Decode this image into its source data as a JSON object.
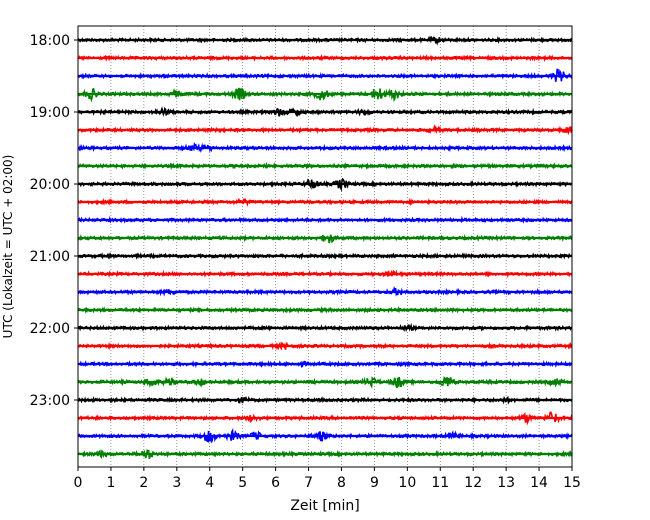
{
  "chart_data": {
    "type": "line",
    "xlabel": "Zeit  [min]",
    "ylabel": "UTC (Lokalzeit = UTC + 02:00)",
    "xlim": [
      0,
      15
    ],
    "x_ticks": [
      "0",
      "1",
      "2",
      "3",
      "4",
      "5",
      "6",
      "7",
      "8",
      "9",
      "10",
      "11",
      "12",
      "13",
      "14",
      "15"
    ],
    "y_ticks": [
      {
        "row": 0,
        "label": "18:00"
      },
      {
        "row": 4,
        "label": "19:00"
      },
      {
        "row": 8,
        "label": "20:00"
      },
      {
        "row": 12,
        "label": "21:00"
      },
      {
        "row": 16,
        "label": "22:00"
      },
      {
        "row": 20,
        "label": "23:00"
      }
    ],
    "row_minutes": 15,
    "trace_colors": [
      "#000000",
      "#ff0000",
      "#0000ff",
      "#008000"
    ],
    "grid": "vertical dotted",
    "rows": [
      {
        "start": "18:00",
        "color": "#000000",
        "events": [
          [
            10.9,
            0.5
          ]
        ]
      },
      {
        "start": "18:15",
        "color": "#ff0000",
        "events": []
      },
      {
        "start": "18:30",
        "color": "#0000ff",
        "events": [
          [
            14.6,
            1.3
          ]
        ]
      },
      {
        "start": "18:45",
        "color": "#008000",
        "events": [
          [
            0.4,
            1.0
          ],
          [
            4.9,
            1.2
          ],
          [
            7.4,
            1.2
          ],
          [
            9.1,
            1.4
          ],
          [
            9.6,
            1.0
          ],
          [
            3.0,
            0.6
          ]
        ]
      },
      {
        "start": "19:00",
        "color": "#000000",
        "events": [
          [
            2.6,
            0.6
          ],
          [
            6.1,
            0.7
          ],
          [
            6.6,
            0.6
          ],
          [
            8.7,
            0.5
          ]
        ]
      },
      {
        "start": "19:15",
        "color": "#ff0000",
        "events": [
          [
            14.9,
            0.6
          ],
          [
            10.8,
            0.4
          ]
        ]
      },
      {
        "start": "19:30",
        "color": "#0000ff",
        "events": [
          [
            3.5,
            0.6
          ],
          [
            3.9,
            0.5
          ]
        ]
      },
      {
        "start": "19:45",
        "color": "#008000",
        "events": []
      },
      {
        "start": "20:00",
        "color": "#000000",
        "events": [
          [
            7.1,
            1.0
          ],
          [
            8.0,
            1.0
          ]
        ]
      },
      {
        "start": "20:15",
        "color": "#ff0000",
        "events": [
          [
            5.0,
            0.4
          ]
        ]
      },
      {
        "start": "20:30",
        "color": "#0000ff",
        "events": []
      },
      {
        "start": "20:45",
        "color": "#008000",
        "events": [
          [
            7.6,
            1.0
          ]
        ]
      },
      {
        "start": "21:00",
        "color": "#000000",
        "events": []
      },
      {
        "start": "21:15",
        "color": "#ff0000",
        "events": [
          [
            9.5,
            0.5
          ]
        ]
      },
      {
        "start": "21:30",
        "color": "#0000ff",
        "events": [
          [
            9.7,
            0.6
          ],
          [
            2.8,
            0.4
          ]
        ]
      },
      {
        "start": "21:45",
        "color": "#008000",
        "events": []
      },
      {
        "start": "22:00",
        "color": "#000000",
        "events": [
          [
            10.0,
            0.4
          ]
        ]
      },
      {
        "start": "22:15",
        "color": "#ff0000",
        "events": [
          [
            6.3,
            0.5
          ]
        ]
      },
      {
        "start": "22:30",
        "color": "#0000ff",
        "events": [
          [
            6.8,
            0.3
          ]
        ]
      },
      {
        "start": "22:45",
        "color": "#008000",
        "events": [
          [
            2.2,
            0.8
          ],
          [
            2.8,
            0.7
          ],
          [
            3.7,
            0.5
          ],
          [
            8.9,
            0.9
          ],
          [
            9.7,
            1.1
          ],
          [
            11.2,
            1.3
          ],
          [
            14.5,
            0.6
          ]
        ]
      },
      {
        "start": "23:00",
        "color": "#000000",
        "events": [
          [
            5.0,
            0.4
          ],
          [
            13.0,
            0.3
          ]
        ]
      },
      {
        "start": "23:15",
        "color": "#ff0000",
        "events": [
          [
            5.3,
            0.5
          ],
          [
            13.6,
            0.9
          ],
          [
            14.4,
            1.2
          ]
        ]
      },
      {
        "start": "23:30",
        "color": "#0000ff",
        "events": [
          [
            4.0,
            1.3
          ],
          [
            4.7,
            0.9
          ],
          [
            5.4,
            0.7
          ],
          [
            7.4,
            0.9
          ],
          [
            11.4,
            0.6
          ]
        ]
      },
      {
        "start": "23:45",
        "color": "#008000",
        "events": [
          [
            0.7,
            0.5
          ],
          [
            2.1,
            1.0
          ]
        ]
      }
    ]
  }
}
